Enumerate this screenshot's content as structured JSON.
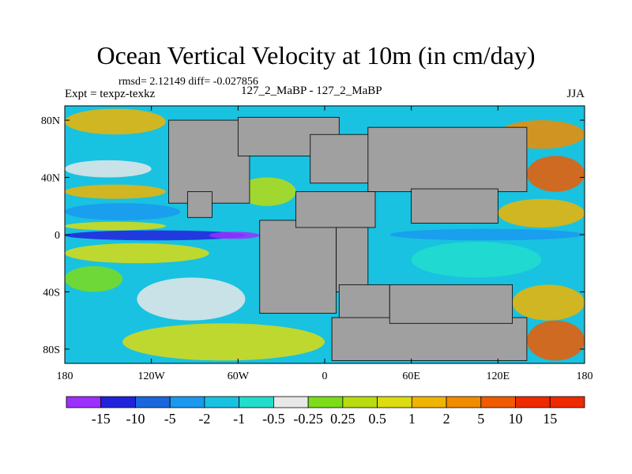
{
  "chart_data": {
    "type": "heatmap",
    "title": "Ocean Vertical Velocity at 10m (in cm/day)",
    "stats_line": "rmsd= 2.12149 diff= -0.027856",
    "expt_label": "Expt = texpz-texkz",
    "subtitle": "127_2_MaBP - 127_2_MaBP",
    "season": "JJA",
    "x_range": [
      -180,
      180
    ],
    "y_range": [
      -90,
      90
    ],
    "x_ticks": [
      {
        "value": -180,
        "label": "180"
      },
      {
        "value": -120,
        "label": "120W"
      },
      {
        "value": -60,
        "label": "60W"
      },
      {
        "value": 0,
        "label": "0"
      },
      {
        "value": 60,
        "label": "60E"
      },
      {
        "value": 120,
        "label": "120E"
      },
      {
        "value": 180,
        "label": "180"
      }
    ],
    "y_ticks": [
      {
        "value": 80,
        "label": "80N"
      },
      {
        "value": 40,
        "label": "40N"
      },
      {
        "value": 0,
        "label": "0"
      },
      {
        "value": -40,
        "label": "40S"
      },
      {
        "value": -80,
        "label": "80S"
      }
    ],
    "colorbar": {
      "levels": [
        "-15",
        "-10",
        "-5",
        "-2",
        "-1",
        "-0.5",
        "-0.25",
        "0.25",
        "0.5",
        "1",
        "2",
        "5",
        "10",
        "15"
      ],
      "colors": [
        "#9b30ff",
        "#2222dd",
        "#1a66dd",
        "#1a99ee",
        "#19c2e0",
        "#22ddcc",
        "#e8e8e8",
        "#7cdc1a",
        "#b8dc10",
        "#dcdc10",
        "#f0b400",
        "#f08c00",
        "#f05a00",
        "#ee2a00",
        "#ee2a00"
      ]
    },
    "land_color": "#a0a0a0",
    "ocean_base_color": "#19c2e0",
    "land_blocks": [
      {
        "lon0": -108,
        "lon1": -52,
        "lat0": 22,
        "lat1": 80
      },
      {
        "lon0": -60,
        "lon1": 10,
        "lat0": 55,
        "lat1": 82
      },
      {
        "lon0": -95,
        "lon1": -78,
        "lat0": 12,
        "lat1": 30
      },
      {
        "lon0": -10,
        "lon1": 40,
        "lat0": 36,
        "lat1": 70
      },
      {
        "lon0": 30,
        "lon1": 140,
        "lat0": 30,
        "lat1": 75
      },
      {
        "lon0": 60,
        "lon1": 120,
        "lat0": 8,
        "lat1": 32
      },
      {
        "lon0": -45,
        "lon1": 8,
        "lat0": -55,
        "lat1": 10
      },
      {
        "lon0": -20,
        "lon1": 35,
        "lat0": 5,
        "lat1": 30
      },
      {
        "lon0": 8,
        "lon1": 30,
        "lat0": -40,
        "lat1": 5
      },
      {
        "lon0": 10,
        "lon1": 45,
        "lat0": -60,
        "lat1": -35
      },
      {
        "lon0": 5,
        "lon1": 140,
        "lat0": -88,
        "lat1": -58
      },
      {
        "lon0": 45,
        "lon1": 130,
        "lat0": -62,
        "lat1": -35
      }
    ],
    "bands": [
      {
        "lat0": 70,
        "lat1": 88,
        "lon0": -180,
        "lon1": -110,
        "level": 10
      },
      {
        "lat0": 55,
        "lat1": 68,
        "lon0": -180,
        "lon1": -115,
        "level": 4
      },
      {
        "lat0": 40,
        "lat1": 52,
        "lon0": -180,
        "lon1": -120,
        "level": 6
      },
      {
        "lat0": 25,
        "lat1": 35,
        "lon0": -180,
        "lon1": -110,
        "level": 10
      },
      {
        "lat0": 10,
        "lat1": 22,
        "lon0": -180,
        "lon1": -100,
        "level": 3
      },
      {
        "lat0": 3,
        "lat1": 9,
        "lon0": -180,
        "lon1": -110,
        "level": 9
      },
      {
        "lat0": -4,
        "lat1": 3,
        "lon0": -180,
        "lon1": -55,
        "level": 1
      },
      {
        "lat0": -3,
        "lat1": 2,
        "lon0": -80,
        "lon1": -45,
        "level": 0
      },
      {
        "lat0": -20,
        "lat1": -6,
        "lon0": -180,
        "lon1": -80,
        "level": 9
      },
      {
        "lat0": -40,
        "lat1": -22,
        "lon0": -180,
        "lon1": -140,
        "level": 7
      },
      {
        "lat0": -60,
        "lat1": -30,
        "lon0": -130,
        "lon1": -55,
        "level": 6
      },
      {
        "lat0": -88,
        "lat1": -62,
        "lon0": -140,
        "lon1": 0,
        "level": 9
      },
      {
        "lat0": 20,
        "lat1": 40,
        "lon0": -60,
        "lon1": -20,
        "level": 8
      },
      {
        "lat0": 60,
        "lat1": 80,
        "lon0": 120,
        "lon1": 180,
        "level": 11
      },
      {
        "lat0": 30,
        "lat1": 55,
        "lon0": 140,
        "lon1": 180,
        "level": 12
      },
      {
        "lat0": 5,
        "lat1": 25,
        "lon0": 120,
        "lon1": 180,
        "level": 10
      },
      {
        "lat0": -4,
        "lat1": 4,
        "lon0": 45,
        "lon1": 180,
        "level": 3
      },
      {
        "lat0": -30,
        "lat1": -5,
        "lon0": 60,
        "lon1": 150,
        "level": 5
      },
      {
        "lat0": -60,
        "lat1": -35,
        "lon0": 130,
        "lon1": 180,
        "level": 10
      },
      {
        "lat0": -88,
        "lat1": -60,
        "lon0": 140,
        "lon1": 180,
        "level": 12
      }
    ]
  }
}
